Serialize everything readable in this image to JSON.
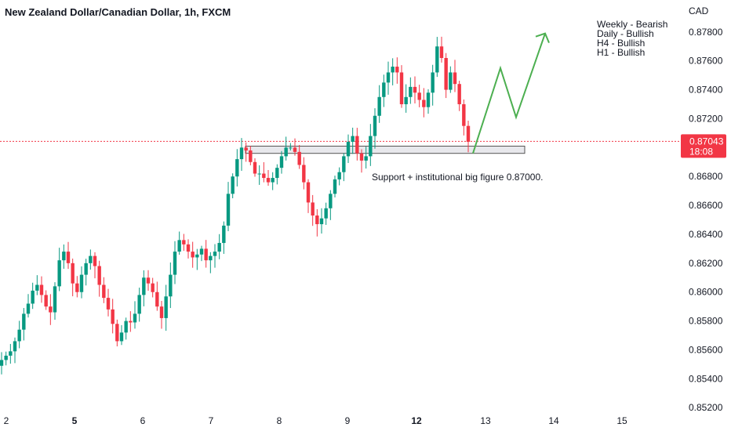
{
  "chart_data": {
    "type": "candlestick",
    "title": "New Zealand Dollar/Canadian Dollar, 1h, FXCM",
    "currency_label": "CAD",
    "y_ticks": [
      0.878,
      0.876,
      0.874,
      0.872,
      0.87,
      0.868,
      0.866,
      0.864,
      0.862,
      0.86,
      0.858,
      0.856,
      0.854,
      0.852
    ],
    "y_tick_labels": [
      "0.87800",
      "0.87600",
      "0.87400",
      "0.87200",
      "0.87000",
      "0.86800",
      "0.86600",
      "0.86400",
      "0.86200",
      "0.86000",
      "0.85800",
      "0.85600",
      "0.85400",
      "0.85200"
    ],
    "ylim": [
      0.8512,
      0.8794
    ],
    "x_ticks": [
      {
        "label": "2",
        "bold": false
      },
      {
        "label": "5",
        "bold": true
      },
      {
        "label": "6",
        "bold": false
      },
      {
        "label": "7",
        "bold": false
      },
      {
        "label": "8",
        "bold": false
      },
      {
        "label": "9",
        "bold": false
      },
      {
        "label": "12",
        "bold": true
      },
      {
        "label": "13",
        "bold": false
      },
      {
        "label": "14",
        "bold": false
      },
      {
        "label": "15",
        "bold": false
      }
    ],
    "current_price": 0.87043,
    "current_price_label": "0.87043",
    "countdown_label": "18:08",
    "support_zone": {
      "low": 0.8696,
      "high": 0.8701
    },
    "annotation": "Support + institutional big figure 0.87000.",
    "bias_notes": [
      "Weekly - Bearish",
      "Daily - Bullish",
      "H4 - Bullish",
      "H1 - Bullish"
    ],
    "projection_path": [
      0.8696,
      0.8755,
      0.8721,
      0.8779
    ],
    "close_path": [
      0.8553,
      0.8556,
      0.8559,
      0.8566,
      0.8574,
      0.8585,
      0.8592,
      0.8601,
      0.8605,
      0.8598,
      0.859,
      0.8586,
      0.8604,
      0.8622,
      0.8628,
      0.862,
      0.8606,
      0.86,
      0.8612,
      0.862,
      0.8625,
      0.8618,
      0.8605,
      0.8596,
      0.8588,
      0.8578,
      0.8566,
      0.8572,
      0.858,
      0.8579,
      0.8585,
      0.8598,
      0.861,
      0.8606,
      0.86,
      0.859,
      0.8582,
      0.8597,
      0.8612,
      0.8628,
      0.8636,
      0.8633,
      0.8628,
      0.8624,
      0.8626,
      0.863,
      0.8622,
      0.8625,
      0.8628,
      0.8634,
      0.8646,
      0.8668,
      0.868,
      0.8692,
      0.87,
      0.8698,
      0.869,
      0.8682,
      0.8682,
      0.8679,
      0.8676,
      0.8679,
      0.8686,
      0.8694,
      0.87,
      0.87,
      0.8697,
      0.8688,
      0.8676,
      0.8662,
      0.8653,
      0.8647,
      0.8651,
      0.8658,
      0.8668,
      0.8678,
      0.8683,
      0.8694,
      0.8704,
      0.8708,
      0.8696,
      0.8691,
      0.8694,
      0.8708,
      0.8722,
      0.8735,
      0.8745,
      0.8752,
      0.8756,
      0.8752,
      0.873,
      0.8735,
      0.8742,
      0.8738,
      0.8733,
      0.8728,
      0.8738,
      0.8752,
      0.877,
      0.8762,
      0.874,
      0.8752,
      0.8744,
      0.873,
      0.8715,
      0.8704
    ]
  }
}
